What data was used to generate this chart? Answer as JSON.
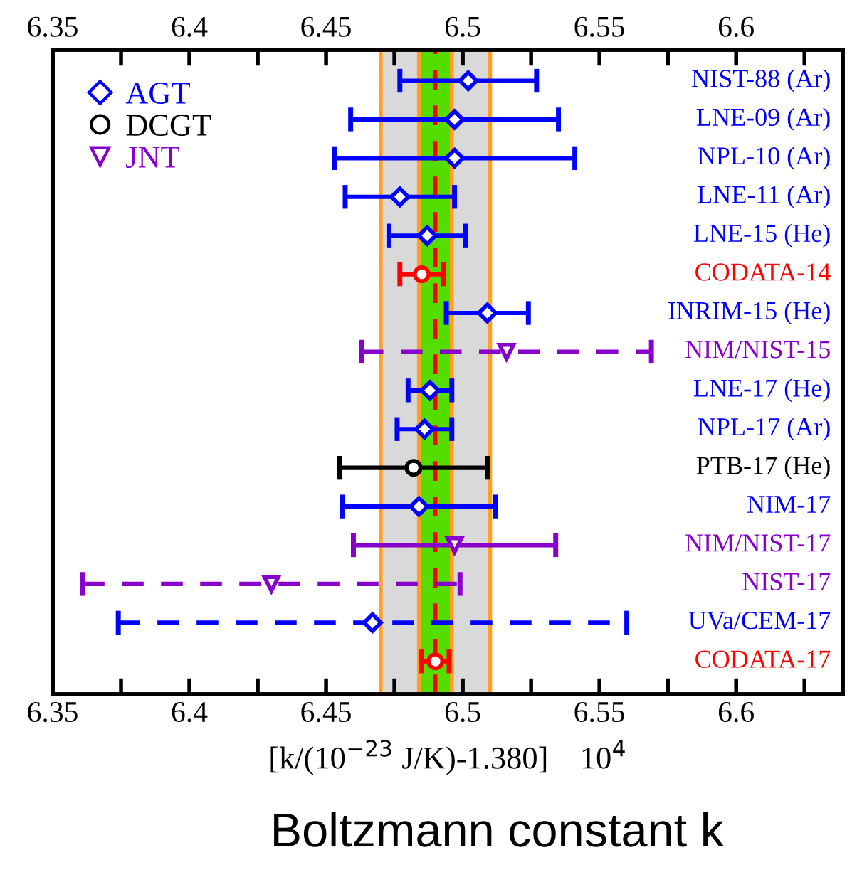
{
  "chart_data": {
    "type": "scatter",
    "orientation": "horizontal",
    "categories": [
      "NIST-88 (Ar)",
      "LNE-09 (Ar)",
      "NPL-10 (Ar)",
      "LNE-11 (Ar)",
      "LNE-15 (He)",
      "CODATA-14",
      "INRIM-15 (He)",
      "NIM/NIST-15",
      "LNE-17 (He)",
      "NPL-17 (Ar)",
      "PTB-17 (He)",
      "NIM-17",
      "NIM/NIST-17",
      "NIST-17",
      "UVa/CEM-17",
      "CODATA-17"
    ],
    "series": [
      {
        "name": "AGT",
        "color": "#0000ff",
        "marker": "diamond",
        "line_style": "solid",
        "values": [
          6.502,
          6.497,
          6.497,
          6.477,
          6.487,
          null,
          6.509,
          null,
          6.488,
          6.486,
          null,
          6.484,
          null,
          null,
          null,
          null
        ],
        "errors": [
          0.025,
          0.038,
          0.044,
          0.02,
          0.014,
          null,
          0.015,
          null,
          0.008,
          0.01,
          null,
          0.028,
          null,
          null,
          null,
          null
        ]
      },
      {
        "color": "#0000ff",
        "marker": "diamond",
        "line_style": "dashed",
        "values": [
          null,
          null,
          null,
          null,
          null,
          null,
          null,
          null,
          null,
          null,
          null,
          null,
          null,
          null,
          6.467,
          null
        ],
        "errors": [
          null,
          null,
          null,
          null,
          null,
          null,
          null,
          null,
          null,
          null,
          null,
          null,
          null,
          null,
          0.093,
          null
        ]
      },
      {
        "name": "DCGT",
        "color": "#000000",
        "marker": "circle",
        "line_style": "solid",
        "values": [
          null,
          null,
          null,
          null,
          null,
          null,
          null,
          null,
          null,
          null,
          6.482,
          null,
          null,
          null,
          null,
          null
        ],
        "errors": [
          null,
          null,
          null,
          null,
          null,
          null,
          null,
          null,
          null,
          null,
          0.027,
          null,
          null,
          null,
          null,
          null
        ]
      },
      {
        "name": "JNT",
        "color": "#8800cc",
        "marker": "triangle",
        "line_style": "solid",
        "values": [
          null,
          null,
          null,
          null,
          null,
          null,
          null,
          null,
          null,
          null,
          null,
          null,
          6.497,
          null,
          null,
          null
        ],
        "errors": [
          null,
          null,
          null,
          null,
          null,
          null,
          null,
          null,
          null,
          null,
          null,
          null,
          0.037,
          null,
          null,
          null
        ]
      },
      {
        "color": "#8800cc",
        "marker": "triangle",
        "line_style": "dashed",
        "values": [
          null,
          null,
          null,
          null,
          null,
          null,
          null,
          6.516,
          null,
          null,
          null,
          null,
          null,
          6.43,
          null,
          null
        ],
        "errors": [
          null,
          null,
          null,
          null,
          null,
          null,
          null,
          0.053,
          null,
          null,
          null,
          null,
          null,
          0.069,
          null,
          null
        ]
      },
      {
        "color": "#ff0000",
        "marker": "circle",
        "line_style": "solid",
        "values": [
          null,
          null,
          null,
          null,
          null,
          6.485,
          null,
          null,
          null,
          null,
          null,
          null,
          null,
          null,
          null,
          6.49
        ],
        "errors": [
          null,
          null,
          null,
          null,
          null,
          0.008,
          null,
          null,
          null,
          null,
          null,
          null,
          null,
          null,
          null,
          0.005
        ]
      }
    ],
    "xlim": [
      6.35,
      6.639
    ],
    "xticks": [
      6.35,
      {
        "value": 6.375,
        "label": null
      },
      6.4,
      {
        "value": 6.425,
        "label": null
      },
      6.45,
      {
        "value": 6.475,
        "label": null
      },
      6.5,
      {
        "value": 6.525,
        "label": null
      },
      6.55,
      {
        "value": 6.575,
        "label": null
      },
      6.6,
      {
        "value": 6.625,
        "label": null
      }
    ],
    "x2lim": [
      6.35,
      6.639
    ],
    "x2ticks": [
      6.35,
      {
        "value": 6.375,
        "label": null
      },
      6.4,
      {
        "value": 6.425,
        "label": null
      },
      6.45,
      {
        "value": 6.475,
        "label": null
      },
      6.5,
      {
        "value": 6.525,
        "label": null
      },
      6.55,
      {
        "value": 6.575,
        "label": null
      },
      6.6,
      {
        "value": 6.625,
        "label": null
      }
    ],
    "xlabel": "[k/(10$^{−23}$ J/K)-1.380]    10$^{4}$",
    "bands": [
      {
        "axis": "x",
        "from": 6.47,
        "to": 6.51,
        "color": "#d9d9d9"
      },
      {
        "axis": "x",
        "from": 6.484,
        "to": 6.496,
        "color": "#55dd00"
      }
    ],
    "ref_lines": [
      {
        "axis": "x",
        "value": 6.47,
        "color": "#ffa020",
        "line_style": "solid"
      },
      {
        "axis": "x",
        "value": 6.51,
        "color": "#ffa020",
        "line_style": "solid"
      },
      {
        "axis": "x",
        "value": 6.484,
        "color": "#ffa020",
        "line_style": "solid"
      },
      {
        "axis": "x",
        "value": 6.496,
        "color": "#ffa020",
        "line_style": "solid"
      },
      {
        "axis": "x",
        "value": 6.49,
        "color": "#ff0000",
        "line_style": "dashed"
      }
    ],
    "annotations": [
      "Boltzmann constant k"
    ],
    "legend": "top left",
    "grid": false
  }
}
